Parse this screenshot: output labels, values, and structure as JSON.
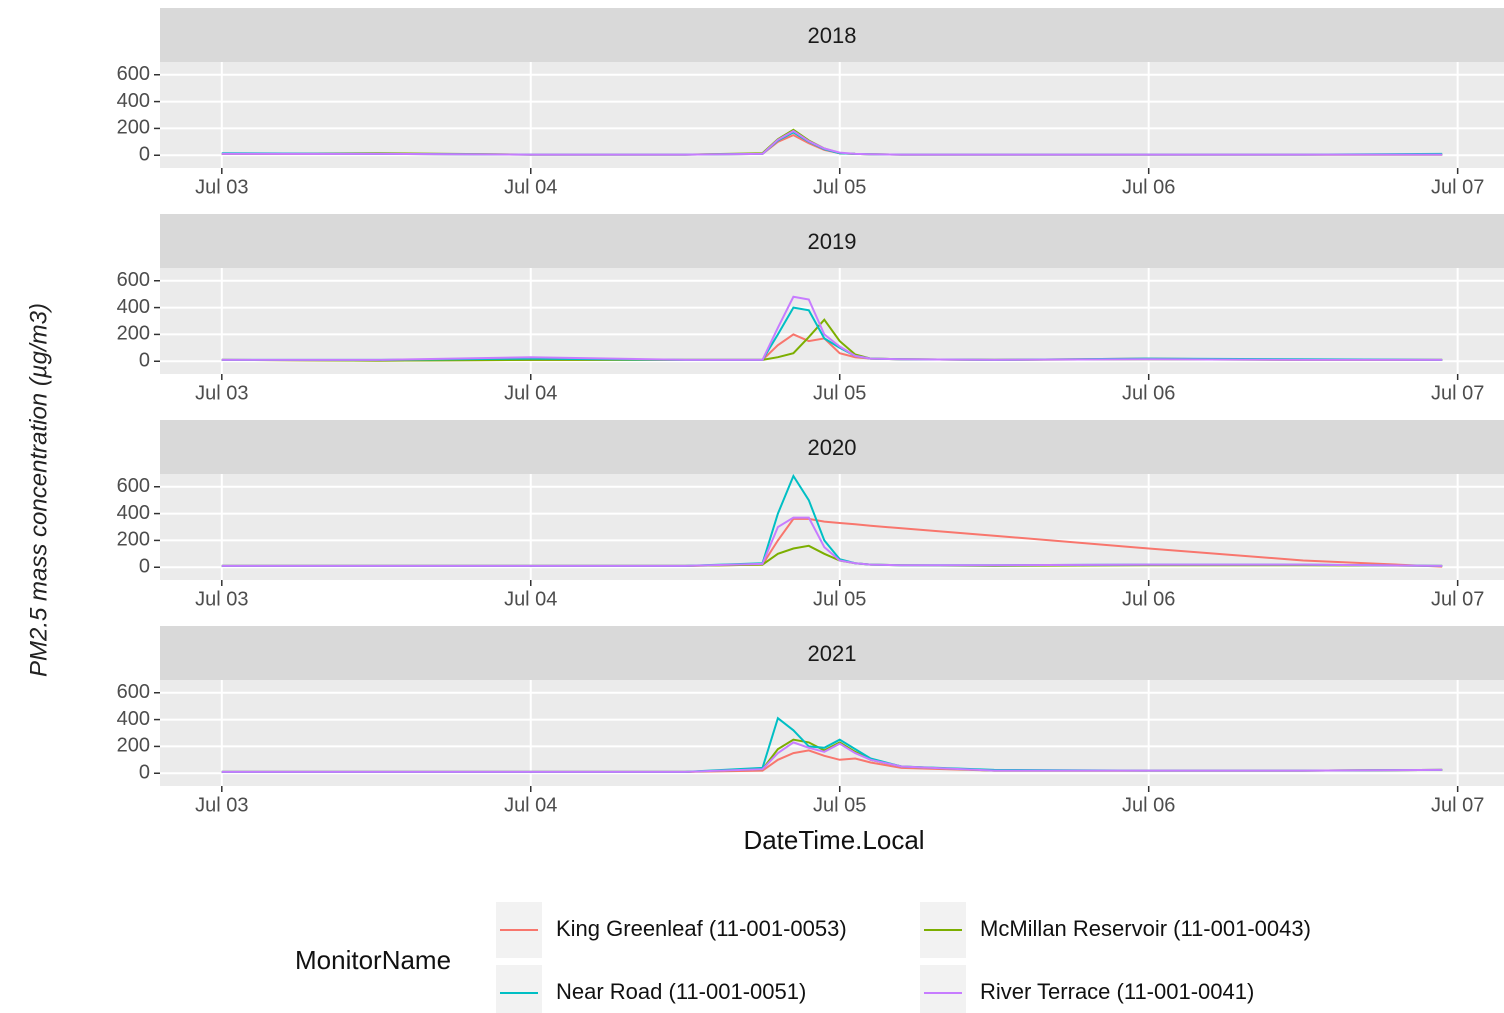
{
  "chart_data": [
    {
      "type": "line",
      "title": "2018",
      "x": [
        0,
        0.5,
        1,
        1.5,
        1.75,
        1.8,
        1.85,
        1.9,
        1.95,
        2,
        2.05,
        2.1,
        2.2,
        2.5,
        3,
        3.5,
        3.95
      ],
      "series": [
        {
          "name": "King Greenleaf (11-001-0053)",
          "color": "#F8766D",
          "values": [
            10,
            10,
            5,
            5,
            10,
            100,
            150,
            90,
            40,
            15,
            10,
            8,
            5,
            5,
            5,
            5,
            5
          ]
        },
        {
          "name": "McMillan Reservoir (11-001-0043)",
          "color": "#7CAE00",
          "values": [
            10,
            15,
            5,
            5,
            15,
            120,
            190,
            110,
            50,
            15,
            10,
            8,
            5,
            5,
            5,
            5,
            5
          ]
        },
        {
          "name": "Near Road (11-001-0051)",
          "color": "#00BFC4",
          "values": [
            15,
            10,
            5,
            5,
            10,
            110,
            170,
            100,
            45,
            15,
            10,
            8,
            5,
            5,
            5,
            5,
            10
          ]
        },
        {
          "name": "River Terrace (11-001-0041)",
          "color": "#C77CFF",
          "values": [
            10,
            10,
            5,
            5,
            10,
            115,
            180,
            105,
            50,
            20,
            10,
            8,
            5,
            5,
            5,
            5,
            5
          ]
        }
      ],
      "xlim": [
        -0.2,
        4.15
      ],
      "ylim": [
        -95,
        695
      ],
      "xticks": [
        {
          "value": 0,
          "label": "Jul 03"
        },
        {
          "value": 1,
          "label": "Jul 04"
        },
        {
          "value": 2,
          "label": "Jul 05"
        },
        {
          "value": 3,
          "label": "Jul 06"
        },
        {
          "value": 4,
          "label": "Jul 07"
        }
      ],
      "yticks": [
        0,
        200,
        400,
        600
      ],
      "grid": true
    },
    {
      "type": "line",
      "title": "2019",
      "x": [
        0,
        0.5,
        1,
        1.5,
        1.75,
        1.8,
        1.85,
        1.9,
        1.95,
        2,
        2.05,
        2.1,
        2.2,
        2.5,
        3,
        3.5,
        3.95
      ],
      "series": [
        {
          "name": "King Greenleaf (11-001-0053)",
          "color": "#F8766D",
          "values": [
            10,
            5,
            10,
            10,
            10,
            120,
            200,
            150,
            170,
            60,
            30,
            20,
            15,
            10,
            20,
            10,
            10
          ]
        },
        {
          "name": "McMillan Reservoir (11-001-0043)",
          "color": "#7CAE00",
          "values": [
            10,
            5,
            10,
            10,
            10,
            30,
            60,
            180,
            310,
            150,
            50,
            20,
            15,
            10,
            15,
            10,
            10
          ]
        },
        {
          "name": "Near Road (11-001-0051)",
          "color": "#00BFC4",
          "values": [
            10,
            10,
            20,
            10,
            10,
            200,
            400,
            380,
            170,
            100,
            40,
            20,
            15,
            10,
            20,
            15,
            10
          ]
        },
        {
          "name": "River Terrace (11-001-0041)",
          "color": "#C77CFF",
          "values": [
            10,
            10,
            30,
            10,
            10,
            250,
            480,
            460,
            200,
            110,
            40,
            20,
            15,
            10,
            15,
            10,
            10
          ]
        }
      ],
      "xlim": [
        -0.2,
        4.15
      ],
      "ylim": [
        -95,
        695
      ],
      "xticks": [
        {
          "value": 0,
          "label": "Jul 03"
        },
        {
          "value": 1,
          "label": "Jul 04"
        },
        {
          "value": 2,
          "label": "Jul 05"
        },
        {
          "value": 3,
          "label": "Jul 06"
        },
        {
          "value": 4,
          "label": "Jul 07"
        }
      ],
      "yticks": [
        0,
        200,
        400,
        600
      ],
      "grid": true
    },
    {
      "type": "line",
      "title": "2020",
      "x": [
        0,
        0.5,
        1,
        1.5,
        1.75,
        1.8,
        1.85,
        1.9,
        1.95,
        2,
        2.05,
        2.1,
        2.2,
        2.5,
        3,
        3.5,
        3.95
      ],
      "series": [
        {
          "name": "King Greenleaf (11-001-0053)",
          "color": "#F8766D",
          "values": [
            10,
            10,
            10,
            10,
            20,
            200,
            360,
            360,
            340,
            330,
            320,
            310,
            290,
            235,
            140,
            50,
            5
          ]
        },
        {
          "name": "McMillan Reservoir (11-001-0043)",
          "color": "#7CAE00",
          "values": [
            10,
            10,
            10,
            10,
            20,
            100,
            140,
            160,
            100,
            50,
            30,
            20,
            15,
            10,
            15,
            15,
            10
          ]
        },
        {
          "name": "Near Road (11-001-0051)",
          "color": "#00BFC4",
          "values": [
            10,
            10,
            10,
            10,
            30,
            400,
            680,
            500,
            200,
            60,
            30,
            20,
            15,
            15,
            20,
            20,
            10
          ]
        },
        {
          "name": "River Terrace (11-001-0041)",
          "color": "#C77CFF",
          "values": [
            10,
            10,
            10,
            10,
            25,
            300,
            370,
            370,
            150,
            50,
            30,
            20,
            15,
            15,
            20,
            20,
            10
          ]
        }
      ],
      "xlim": [
        -0.2,
        4.15
      ],
      "ylim": [
        -95,
        695
      ],
      "xticks": [
        {
          "value": 0,
          "label": "Jul 03"
        },
        {
          "value": 1,
          "label": "Jul 04"
        },
        {
          "value": 2,
          "label": "Jul 05"
        },
        {
          "value": 3,
          "label": "Jul 06"
        },
        {
          "value": 4,
          "label": "Jul 07"
        }
      ],
      "yticks": [
        0,
        200,
        400,
        600
      ],
      "grid": true
    },
    {
      "type": "line",
      "title": "2021",
      "x": [
        0,
        0.5,
        1,
        1.5,
        1.75,
        1.8,
        1.85,
        1.9,
        1.95,
        2,
        2.05,
        2.1,
        2.2,
        2.5,
        3,
        3.5,
        3.95
      ],
      "series": [
        {
          "name": "King Greenleaf (11-001-0053)",
          "color": "#F8766D",
          "values": [
            10,
            10,
            10,
            10,
            20,
            100,
            150,
            170,
            130,
            100,
            110,
            80,
            40,
            20,
            20,
            20,
            25
          ]
        },
        {
          "name": "McMillan Reservoir (11-001-0043)",
          "color": "#7CAE00",
          "values": [
            10,
            10,
            10,
            10,
            30,
            180,
            250,
            230,
            170,
            230,
            160,
            100,
            50,
            20,
            20,
            20,
            25
          ]
        },
        {
          "name": "Near Road (11-001-0051)",
          "color": "#00BFC4",
          "values": [
            10,
            10,
            10,
            10,
            40,
            410,
            320,
            200,
            190,
            250,
            180,
            110,
            50,
            25,
            20,
            20,
            25
          ]
        },
        {
          "name": "River Terrace (11-001-0041)",
          "color": "#C77CFF",
          "values": [
            10,
            10,
            10,
            10,
            30,
            150,
            230,
            190,
            160,
            220,
            150,
            100,
            50,
            20,
            20,
            20,
            25
          ]
        }
      ],
      "xlim": [
        -0.2,
        4.15
      ],
      "ylim": [
        -95,
        695
      ],
      "xticks": [
        {
          "value": 0,
          "label": "Jul 03"
        },
        {
          "value": 1,
          "label": "Jul 04"
        },
        {
          "value": 2,
          "label": "Jul 05"
        },
        {
          "value": 3,
          "label": "Jul 06"
        },
        {
          "value": 4,
          "label": "Jul 07"
        }
      ],
      "yticks": [
        0,
        200,
        400,
        600
      ],
      "grid": true
    }
  ],
  "axes": {
    "y_label": "PM2.5 mass concentration (µg/m3)",
    "x_label": "DateTime.Local"
  },
  "legend": {
    "title": "MonitorName",
    "position": "bottom"
  }
}
